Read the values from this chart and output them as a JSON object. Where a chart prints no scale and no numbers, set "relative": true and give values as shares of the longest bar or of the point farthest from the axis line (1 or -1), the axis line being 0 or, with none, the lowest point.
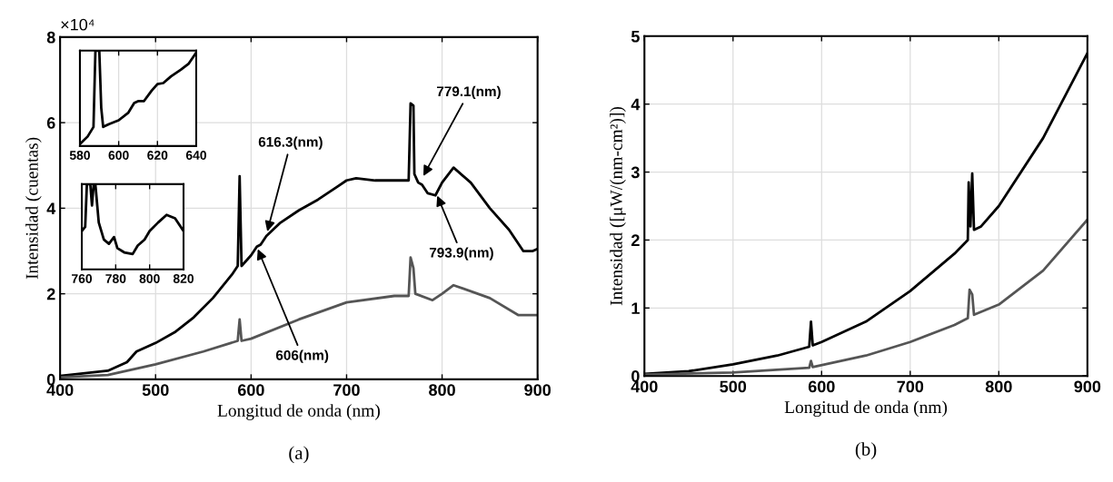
{
  "chart_data": [
    {
      "type": "line",
      "title": "(a)",
      "xlabel": "Longitud de onda (nm)",
      "ylabel": "Intensidad (cuentas)",
      "xlim": [
        400,
        900
      ],
      "xticks": [
        400,
        500,
        600,
        700,
        800,
        900
      ],
      "ylim": [
        0,
        8
      ],
      "yticks": [
        0,
        2,
        4,
        6,
        8
      ],
      "grid": true,
      "series": [
        {
          "color": "#000000",
          "x": [
            400,
            450,
            470,
            480,
            500,
            520,
            540,
            560,
            580,
            586,
            588,
            590,
            600,
            606,
            610,
            616,
            630,
            650,
            670,
            690,
            700,
            710,
            730,
            750,
            765,
            767,
            770,
            771,
            775,
            779,
            785,
            793,
            800,
            812,
            830,
            850,
            870,
            885,
            895,
            900
          ],
          "values": [
            0.08,
            0.2,
            0.4,
            0.65,
            0.85,
            1.1,
            1.45,
            1.9,
            2.45,
            2.65,
            4.75,
            2.65,
            2.9,
            3.1,
            3.15,
            3.35,
            3.65,
            3.95,
            4.2,
            4.5,
            4.65,
            4.7,
            4.65,
            4.65,
            4.65,
            6.45,
            6.4,
            4.8,
            4.6,
            4.55,
            4.35,
            4.3,
            4.6,
            4.95,
            4.6,
            4.0,
            3.5,
            3.0,
            3.0,
            3.05
          ]
        },
        {
          "color": "#555555",
          "x": [
            400,
            450,
            500,
            550,
            586,
            588,
            590,
            600,
            650,
            700,
            750,
            765,
            767,
            770,
            772,
            790,
            800,
            812,
            850,
            880,
            900
          ],
          "values": [
            0.05,
            0.1,
            0.35,
            0.65,
            0.9,
            1.4,
            0.9,
            0.95,
            1.4,
            1.8,
            1.95,
            1.95,
            2.85,
            2.6,
            2.0,
            1.85,
            2.0,
            2.2,
            1.9,
            1.5,
            1.5
          ]
        }
      ],
      "annotations": [
        "×10⁴",
        {
          "text": "616.3(nm)",
          "x": 616.3,
          "y": 3.4
        },
        {
          "text": "606(nm)",
          "x": 606,
          "y": 3.1
        },
        {
          "text": "779.1(nm)",
          "x": 779.1,
          "y": 4.7
        },
        {
          "text": "793.9(nm)",
          "x": 793.9,
          "y": 4.35
        }
      ]
    },
    {
      "type": "line",
      "relative": true,
      "xlim": [
        580,
        640
      ],
      "xticks": [
        580,
        600,
        620,
        640
      ],
      "grid": "x",
      "tick_labels": "x",
      "series": [
        {
          "color": "#000000",
          "x": [
            580,
            584,
            587,
            588,
            590,
            591,
            592,
            595,
            600,
            605,
            608,
            610,
            613,
            617,
            620,
            623,
            627,
            632,
            636,
            640
          ],
          "values": [
            0.02,
            0.1,
            0.2,
            1.0,
            1.0,
            0.4,
            0.2,
            0.23,
            0.27,
            0.35,
            0.45,
            0.47,
            0.47,
            0.58,
            0.65,
            0.66,
            0.73,
            0.8,
            0.86,
            0.98
          ]
        }
      ]
    },
    {
      "type": "line",
      "relative": true,
      "xlim": [
        760,
        820
      ],
      "xticks": [
        760,
        780,
        800,
        820
      ],
      "grid": "x",
      "tick_labels": "x",
      "series": [
        {
          "color": "#000000",
          "x": [
            760,
            762,
            763,
            765,
            766,
            767,
            768,
            770,
            773,
            776,
            779,
            781,
            785,
            790,
            793,
            797,
            800,
            805,
            810,
            815,
            820
          ],
          "values": [
            0.45,
            0.5,
            1.0,
            1.0,
            0.75,
            1.0,
            1.0,
            0.55,
            0.35,
            0.3,
            0.38,
            0.25,
            0.2,
            0.18,
            0.28,
            0.35,
            0.45,
            0.55,
            0.64,
            0.6,
            0.45
          ]
        }
      ]
    },
    {
      "type": "line",
      "title": "(b)",
      "xlabel": "Longitud de onda (nm)",
      "ylabel": "Intensidad ([μW/(nm-cm²)])",
      "xlim": [
        400,
        900
      ],
      "xticks": [
        400,
        500,
        600,
        700,
        800,
        900
      ],
      "ylim": [
        0,
        5
      ],
      "yticks": [
        0,
        1,
        2,
        3,
        4,
        5
      ],
      "grid": true,
      "series": [
        {
          "color": "#000000",
          "x": [
            400,
            450,
            500,
            550,
            586,
            588,
            590,
            600,
            650,
            700,
            750,
            765,
            766,
            768,
            770,
            772,
            780,
            800,
            850,
            900
          ],
          "values": [
            0.03,
            0.07,
            0.17,
            0.3,
            0.43,
            0.8,
            0.45,
            0.5,
            0.8,
            1.25,
            1.8,
            2.0,
            2.85,
            2.2,
            2.98,
            2.15,
            2.2,
            2.5,
            3.5,
            4.75
          ]
        },
        {
          "color": "#555555",
          "x": [
            400,
            500,
            586,
            588,
            590,
            650,
            700,
            750,
            765,
            767,
            770,
            772,
            800,
            850,
            900
          ],
          "values": [
            0.02,
            0.05,
            0.12,
            0.22,
            0.13,
            0.3,
            0.5,
            0.75,
            0.85,
            1.27,
            1.2,
            0.9,
            1.05,
            1.55,
            2.3
          ]
        }
      ]
    }
  ]
}
